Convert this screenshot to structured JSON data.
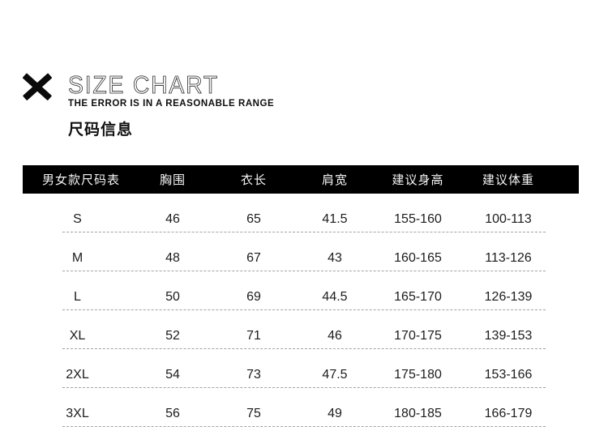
{
  "header": {
    "title": "SIZE CHART",
    "subtitle": "THE ERROR IS IN A REASONABLE RANGE",
    "section_title": "尺码信息",
    "icon": "bold-x-mark-icon",
    "icon_color": "#0a0a0a"
  },
  "size_table": {
    "header_bg": "#000000",
    "header_text_color": "#f4f4f4",
    "divider_color": "#a3a3a3",
    "columns": [
      "男女款尺码表",
      "胸围",
      "衣长",
      "肩宽",
      "建议身高",
      "建议体重"
    ],
    "rows": [
      [
        "S",
        "46",
        "65",
        "41.5",
        "155-160",
        "100-113"
      ],
      [
        "M",
        "48",
        "67",
        "43",
        "160-165",
        "113-126"
      ],
      [
        "L",
        "50",
        "69",
        "44.5",
        "165-170",
        "126-139"
      ],
      [
        "XL",
        "52",
        "71",
        "46",
        "170-175",
        "139-153"
      ],
      [
        "2XL",
        "54",
        "73",
        "47.5",
        "175-180",
        "153-166"
      ],
      [
        "3XL",
        "56",
        "75",
        "49",
        "180-185",
        "166-179"
      ]
    ]
  },
  "chart_data": {
    "type": "table",
    "title": "SIZE CHART 尺码信息",
    "columns": [
      "男女款尺码表",
      "胸围",
      "衣长",
      "肩宽",
      "建议身高",
      "建议体重"
    ],
    "rows": [
      [
        "S",
        46,
        65,
        41.5,
        "155-160",
        "100-113"
      ],
      [
        "M",
        48,
        67,
        43,
        "160-165",
        "113-126"
      ],
      [
        "L",
        50,
        69,
        44.5,
        "165-170",
        "126-139"
      ],
      [
        "XL",
        52,
        71,
        46,
        "170-175",
        "139-153"
      ],
      [
        "2XL",
        54,
        73,
        47.5,
        "175-180",
        "153-166"
      ],
      [
        "3XL",
        56,
        75,
        49,
        "180-185",
        "166-179"
      ]
    ]
  }
}
